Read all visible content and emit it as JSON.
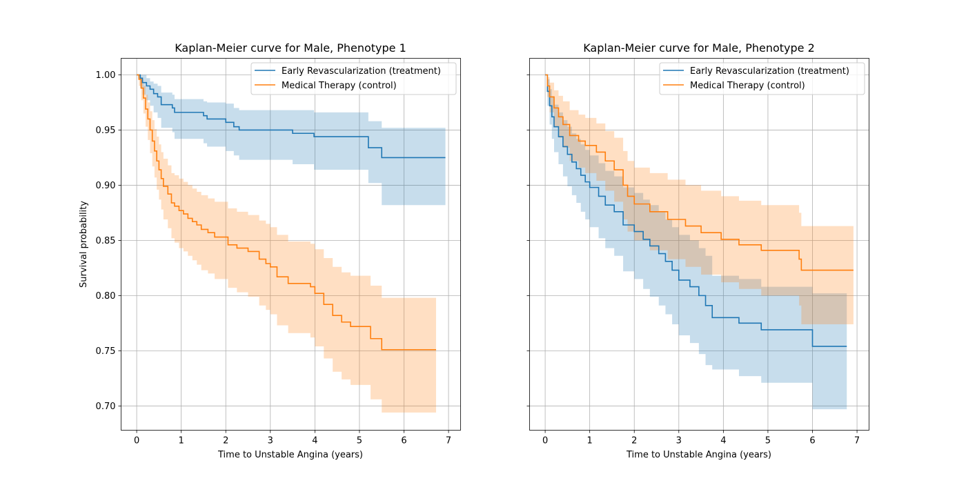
{
  "figure": {
    "colors": {
      "treatment": "#1f77b4",
      "control": "#ff7f0e",
      "grid": "#b0b0b0"
    }
  },
  "chart_data": [
    {
      "type": "line",
      "step": "post",
      "title": "Kaplan-Meier curve for Male, Phenotype 1",
      "xlabel": "Time to Unstable Angina (years)",
      "ylabel": "Survival probability",
      "xlim": [
        -0.35,
        7.27
      ],
      "ylim": [
        0.678,
        1.015
      ],
      "xticks": [
        0,
        1,
        2,
        3,
        4,
        5,
        6,
        7
      ],
      "xtick_labels": [
        "0",
        "1",
        "2",
        "3",
        "4",
        "5",
        "6",
        "7"
      ],
      "yticks": [
        0.7,
        0.75,
        0.8,
        0.85,
        0.9,
        0.95,
        1.0
      ],
      "ytick_labels": [
        "0.70",
        "0.75",
        "0.80",
        "0.85",
        "0.90",
        "0.95",
        "1.00"
      ],
      "grid": true,
      "legend_position": "top-right",
      "series": [
        {
          "name": "Early Revascularization (treatment)",
          "color": "#1f77b4",
          "x": [
            0,
            0.08,
            0.13,
            0.22,
            0.3,
            0.38,
            0.47,
            0.55,
            0.8,
            0.85,
            1.0,
            1.5,
            1.58,
            1.78,
            2.0,
            2.18,
            2.3,
            2.4,
            2.6,
            3.5,
            3.98,
            5.2,
            5.5,
            6.93
          ],
          "y": [
            1.0,
            0.997,
            0.993,
            0.99,
            0.987,
            0.983,
            0.98,
            0.973,
            0.97,
            0.966,
            0.966,
            0.963,
            0.96,
            0.96,
            0.957,
            0.953,
            0.95,
            0.95,
            0.95,
            0.947,
            0.944,
            0.934,
            0.925,
            0.925
          ],
          "ci_lower": [
            1.0,
            0.988,
            0.982,
            0.977,
            0.972,
            0.966,
            0.961,
            0.952,
            0.948,
            0.942,
            0.942,
            0.938,
            0.935,
            0.935,
            0.931,
            0.927,
            0.923,
            0.923,
            0.923,
            0.919,
            0.914,
            0.902,
            0.882,
            0.882
          ],
          "ci_upper": [
            1.0,
            1.0,
            1.0,
            0.997,
            0.994,
            0.992,
            0.99,
            0.984,
            0.982,
            0.978,
            0.978,
            0.976,
            0.975,
            0.975,
            0.974,
            0.97,
            0.968,
            0.968,
            0.968,
            0.968,
            0.966,
            0.958,
            0.952,
            0.952
          ]
        },
        {
          "name": "Medical Therapy (control)",
          "color": "#ff7f0e",
          "x": [
            0,
            0.05,
            0.1,
            0.15,
            0.2,
            0.25,
            0.3,
            0.35,
            0.4,
            0.45,
            0.5,
            0.55,
            0.6,
            0.65,
            0.7,
            0.78,
            0.85,
            0.95,
            1.05,
            1.15,
            1.25,
            1.35,
            1.45,
            1.6,
            1.75,
            2.05,
            2.25,
            2.5,
            2.75,
            2.9,
            3.0,
            3.15,
            3.4,
            3.9,
            4.0,
            4.2,
            4.4,
            4.6,
            4.8,
            5.25,
            5.5,
            6.72
          ],
          "y": [
            1.0,
            0.996,
            0.988,
            0.979,
            0.969,
            0.96,
            0.95,
            0.94,
            0.931,
            0.922,
            0.914,
            0.906,
            0.899,
            0.899,
            0.892,
            0.884,
            0.881,
            0.877,
            0.874,
            0.87,
            0.867,
            0.864,
            0.86,
            0.857,
            0.853,
            0.846,
            0.843,
            0.84,
            0.833,
            0.829,
            0.826,
            0.817,
            0.811,
            0.808,
            0.802,
            0.792,
            0.782,
            0.776,
            0.772,
            0.761,
            0.751,
            0.751
          ],
          "ci_lower": [
            1.0,
            0.99,
            0.977,
            0.965,
            0.953,
            0.941,
            0.929,
            0.917,
            0.907,
            0.896,
            0.887,
            0.878,
            0.869,
            0.869,
            0.861,
            0.852,
            0.848,
            0.843,
            0.84,
            0.836,
            0.832,
            0.828,
            0.823,
            0.82,
            0.815,
            0.807,
            0.803,
            0.799,
            0.791,
            0.787,
            0.783,
            0.773,
            0.766,
            0.762,
            0.754,
            0.743,
            0.731,
            0.724,
            0.719,
            0.706,
            0.694,
            0.694
          ],
          "ci_upper": [
            1.0,
            1.0,
            0.996,
            0.99,
            0.982,
            0.975,
            0.967,
            0.959,
            0.951,
            0.944,
            0.937,
            0.93,
            0.924,
            0.924,
            0.918,
            0.911,
            0.909,
            0.906,
            0.903,
            0.9,
            0.897,
            0.894,
            0.891,
            0.888,
            0.885,
            0.879,
            0.876,
            0.873,
            0.868,
            0.865,
            0.862,
            0.855,
            0.849,
            0.847,
            0.842,
            0.834,
            0.826,
            0.821,
            0.818,
            0.809,
            0.798,
            0.798
          ]
        }
      ]
    },
    {
      "type": "line",
      "step": "post",
      "title": "Kaplan-Meier curve for Male, Phenotype 2",
      "xlabel": "Time to Unstable Angina (years)",
      "ylabel": "",
      "xlim": [
        -0.35,
        7.27
      ],
      "ylim": [
        0.678,
        1.015
      ],
      "xticks": [
        0,
        1,
        2,
        3,
        4,
        5,
        6,
        7
      ],
      "xtick_labels": [
        "0",
        "1",
        "2",
        "3",
        "4",
        "5",
        "6",
        "7"
      ],
      "yticks": [
        0.7,
        0.75,
        0.8,
        0.85,
        0.9,
        0.95,
        1.0
      ],
      "ytick_labels": [],
      "grid": true,
      "legend_position": "top-right",
      "series": [
        {
          "name": "Early Revascularization (treatment)",
          "color": "#1f77b4",
          "x": [
            0,
            0.05,
            0.1,
            0.15,
            0.2,
            0.3,
            0.4,
            0.5,
            0.6,
            0.7,
            0.8,
            0.9,
            1.0,
            1.2,
            1.35,
            1.55,
            1.75,
            2.0,
            2.2,
            2.35,
            2.55,
            2.7,
            2.85,
            3.0,
            3.25,
            3.45,
            3.6,
            3.75,
            4.35,
            4.85,
            6.0,
            6.77
          ],
          "y": [
            1.0,
            0.985,
            0.972,
            0.962,
            0.953,
            0.944,
            0.935,
            0.928,
            0.921,
            0.915,
            0.909,
            0.903,
            0.898,
            0.89,
            0.882,
            0.876,
            0.864,
            0.858,
            0.851,
            0.845,
            0.838,
            0.831,
            0.823,
            0.814,
            0.808,
            0.8,
            0.791,
            0.78,
            0.775,
            0.769,
            0.754,
            0.754
          ],
          "ci_lower": [
            1.0,
            0.972,
            0.955,
            0.942,
            0.93,
            0.919,
            0.908,
            0.899,
            0.891,
            0.884,
            0.876,
            0.869,
            0.862,
            0.852,
            0.843,
            0.836,
            0.822,
            0.815,
            0.806,
            0.799,
            0.791,
            0.783,
            0.774,
            0.764,
            0.757,
            0.747,
            0.737,
            0.733,
            0.727,
            0.721,
            0.697,
            0.697
          ],
          "ci_upper": [
            1.0,
            0.996,
            0.987,
            0.98,
            0.973,
            0.966,
            0.959,
            0.953,
            0.947,
            0.942,
            0.937,
            0.932,
            0.927,
            0.92,
            0.913,
            0.908,
            0.898,
            0.893,
            0.887,
            0.882,
            0.876,
            0.869,
            0.862,
            0.855,
            0.85,
            0.843,
            0.836,
            0.818,
            0.815,
            0.808,
            0.802,
            0.802
          ]
        },
        {
          "name": "Medical Therapy (control)",
          "color": "#ff7f0e",
          "x": [
            0,
            0.05,
            0.1,
            0.2,
            0.3,
            0.4,
            0.55,
            0.75,
            0.9,
            1.15,
            1.35,
            1.55,
            1.75,
            1.85,
            2.0,
            2.35,
            2.75,
            3.15,
            3.5,
            3.95,
            4.35,
            4.85,
            5.7,
            5.75,
            6.92
          ],
          "y": [
            1.0,
            0.99,
            0.98,
            0.97,
            0.962,
            0.955,
            0.945,
            0.94,
            0.936,
            0.93,
            0.922,
            0.914,
            0.9,
            0.89,
            0.883,
            0.876,
            0.869,
            0.863,
            0.857,
            0.851,
            0.846,
            0.841,
            0.833,
            0.823,
            0.823
          ],
          "ci_lower": [
            1.0,
            0.98,
            0.966,
            0.953,
            0.943,
            0.934,
            0.922,
            0.916,
            0.911,
            0.904,
            0.895,
            0.885,
            0.869,
            0.858,
            0.85,
            0.841,
            0.833,
            0.826,
            0.819,
            0.812,
            0.806,
            0.8,
            0.791,
            0.774,
            0.774
          ],
          "ci_upper": [
            1.0,
            0.998,
            0.993,
            0.986,
            0.981,
            0.976,
            0.968,
            0.964,
            0.961,
            0.956,
            0.949,
            0.943,
            0.931,
            0.922,
            0.916,
            0.911,
            0.905,
            0.9,
            0.895,
            0.89,
            0.886,
            0.882,
            0.875,
            0.863,
            0.863
          ]
        }
      ]
    }
  ]
}
